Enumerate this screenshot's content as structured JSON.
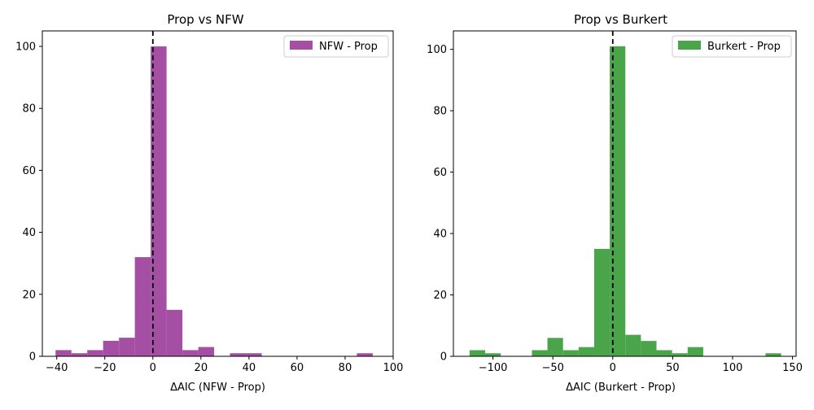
{
  "chart_data": [
    {
      "type": "bar",
      "title": "Prop vs NFW",
      "xlabel": "ΔAIC (NFW - Prop)",
      "ylabel": "",
      "xlim": [
        -46,
        100
      ],
      "ylim": [
        0,
        105
      ],
      "xticks": [
        -40,
        -20,
        0,
        20,
        40,
        60,
        80,
        100
      ],
      "yticks": [
        0,
        20,
        40,
        60,
        80,
        100
      ],
      "legend_position": "top-right",
      "reference_line_x": 0,
      "series": [
        {
          "name": "NFW - Prop",
          "color": "#a44ea4",
          "bins": [
            {
              "x0": -40.5,
              "x1": -33.9,
              "value": 2
            },
            {
              "x0": -33.9,
              "x1": -27.3,
              "value": 1
            },
            {
              "x0": -27.3,
              "x1": -20.7,
              "value": 2
            },
            {
              "x0": -20.7,
              "x1": -14.1,
              "value": 5
            },
            {
              "x0": -14.1,
              "x1": -7.5,
              "value": 6
            },
            {
              "x0": -7.5,
              "x1": -0.9,
              "value": 32
            },
            {
              "x0": -0.9,
              "x1": 5.7,
              "value": 100
            },
            {
              "x0": 5.7,
              "x1": 12.3,
              "value": 15
            },
            {
              "x0": 12.3,
              "x1": 18.9,
              "value": 2
            },
            {
              "x0": 18.9,
              "x1": 25.5,
              "value": 3
            },
            {
              "x0": 32.1,
              "x1": 38.7,
              "value": 1
            },
            {
              "x0": 38.7,
              "x1": 45.3,
              "value": 1
            },
            {
              "x0": 84.9,
              "x1": 91.5,
              "value": 1
            }
          ]
        }
      ]
    },
    {
      "type": "bar",
      "title": "Prop vs Burkert",
      "xlabel": "ΔAIC (Burkert - Prop)",
      "ylabel": "",
      "xlim": [
        -133,
        153
      ],
      "ylim": [
        0,
        106
      ],
      "xticks": [
        -100,
        -50,
        0,
        50,
        100,
        150
      ],
      "yticks": [
        0,
        20,
        40,
        60,
        80,
        100
      ],
      "legend_position": "top-right",
      "reference_line_x": 0,
      "series": [
        {
          "name": "Burkert - Prop",
          "color": "#4aa54a",
          "bins": [
            {
              "x0": -119.5,
              "x1": -106.5,
              "value": 2
            },
            {
              "x0": -106.5,
              "x1": -93.5,
              "value": 1
            },
            {
              "x0": -67.5,
              "x1": -54.5,
              "value": 2
            },
            {
              "x0": -54.5,
              "x1": -41.5,
              "value": 6
            },
            {
              "x0": -41.5,
              "x1": -28.5,
              "value": 2
            },
            {
              "x0": -28.5,
              "x1": -15.5,
              "value": 3
            },
            {
              "x0": -15.5,
              "x1": -2.5,
              "value": 35
            },
            {
              "x0": -2.5,
              "x1": 10.5,
              "value": 101
            },
            {
              "x0": 10.5,
              "x1": 23.5,
              "value": 7
            },
            {
              "x0": 23.5,
              "x1": 36.5,
              "value": 5
            },
            {
              "x0": 36.5,
              "x1": 49.5,
              "value": 2
            },
            {
              "x0": 49.5,
              "x1": 62.5,
              "value": 1
            },
            {
              "x0": 62.5,
              "x1": 75.5,
              "value": 3
            },
            {
              "x0": 127.5,
              "x1": 140.5,
              "value": 1
            }
          ]
        }
      ]
    }
  ]
}
